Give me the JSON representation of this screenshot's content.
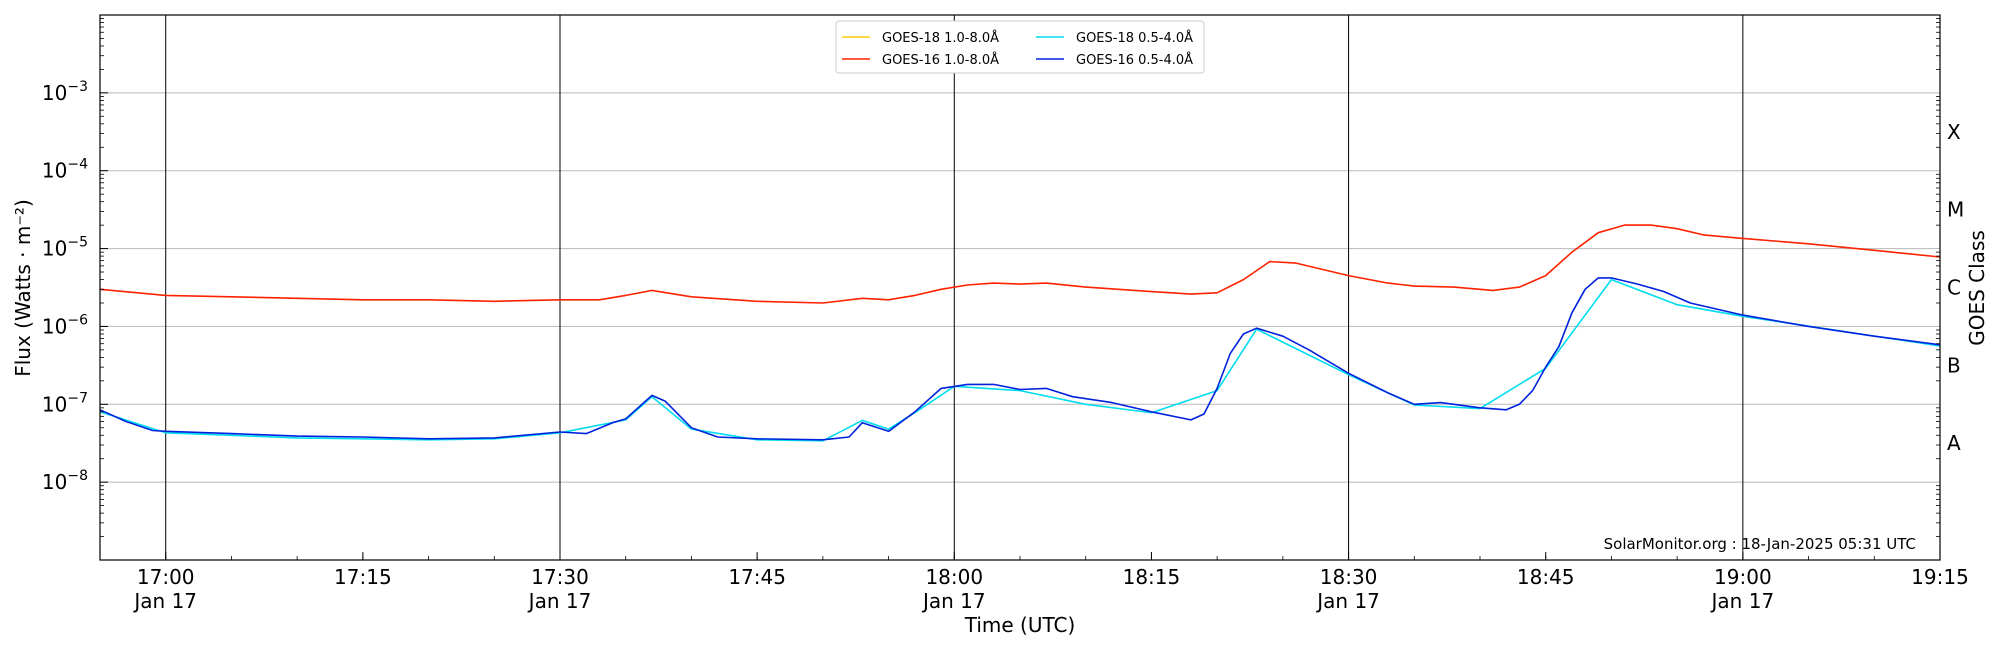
{
  "chart_data": {
    "type": "line",
    "title": "",
    "xlabel": "Time (UTC)",
    "ylabel": "Flux (Watts · m⁻²)",
    "ylabel_right": "GOES Class",
    "y_scale": "log",
    "ylim": [
      1e-09,
      0.01
    ],
    "xlim": [
      "2025-01-17 16:55",
      "2025-01-17 19:15"
    ],
    "grid": "horizontal at decades, vertical at half hours",
    "legend_position": "top-center",
    "credit": "SolarMonitor.org : 18-Jan-2025 05:31 UTC",
    "y_ticks": [
      {
        "value": 1e-08,
        "base": "10",
        "exp": "−8"
      },
      {
        "value": 1e-07,
        "base": "10",
        "exp": "−7"
      },
      {
        "value": 1e-06,
        "base": "10",
        "exp": "−6"
      },
      {
        "value": 1e-05,
        "base": "10",
        "exp": "−5"
      },
      {
        "value": 0.0001,
        "base": "10",
        "exp": "−4"
      },
      {
        "value": 0.001,
        "base": "10",
        "exp": "−3"
      }
    ],
    "x_ticks": [
      {
        "time": "17:00",
        "label": "17:00",
        "sublabel": "Jan 17"
      },
      {
        "time": "17:15",
        "label": "17:15",
        "sublabel": ""
      },
      {
        "time": "17:30",
        "label": "17:30",
        "sublabel": "Jan 17"
      },
      {
        "time": "17:45",
        "label": "17:45",
        "sublabel": ""
      },
      {
        "time": "18:00",
        "label": "18:00",
        "sublabel": "Jan 17"
      },
      {
        "time": "18:15",
        "label": "18:15",
        "sublabel": ""
      },
      {
        "time": "18:30",
        "label": "18:30",
        "sublabel": "Jan 17"
      },
      {
        "time": "18:45",
        "label": "18:45",
        "sublabel": ""
      },
      {
        "time": "19:00",
        "label": "19:00",
        "sublabel": "Jan 17"
      },
      {
        "time": "19:15",
        "label": "19:15",
        "sublabel": ""
      }
    ],
    "goes_classes": [
      {
        "label": "X",
        "value": 0.000316
      },
      {
        "label": "M",
        "value": 3.16e-05
      },
      {
        "label": "C",
        "value": 3.16e-06
      },
      {
        "label": "B",
        "value": 3.16e-07
      },
      {
        "label": "A",
        "value": 3.16e-08
      }
    ],
    "series": [
      {
        "name": "GOES-16 1.0-8.0Å",
        "color": "#ff2200",
        "x": [
          "16:55",
          "17:00",
          "17:05",
          "17:10",
          "17:15",
          "17:20",
          "17:25",
          "17:30",
          "17:33",
          "17:35",
          "17:37",
          "17:40",
          "17:45",
          "17:50",
          "17:53",
          "17:55",
          "17:57",
          "17:59",
          "18:01",
          "18:03",
          "18:05",
          "18:07",
          "18:10",
          "18:15",
          "18:18",
          "18:20",
          "18:22",
          "18:24",
          "18:26",
          "18:30",
          "18:33",
          "18:35",
          "18:38",
          "18:41",
          "18:43",
          "18:45",
          "18:47",
          "18:49",
          "18:51",
          "18:53",
          "18:55",
          "18:57",
          "19:00",
          "19:05",
          "19:10",
          "19:15"
        ],
        "values": [
          3e-06,
          2.5e-06,
          2.4e-06,
          2.3e-06,
          2.2e-06,
          2.2e-06,
          2.1e-06,
          2.2e-06,
          2.2e-06,
          2.5e-06,
          2.9e-06,
          2.4e-06,
          2.1e-06,
          2e-06,
          2.3e-06,
          2.2e-06,
          2.5e-06,
          3e-06,
          3.4e-06,
          3.6e-06,
          3.5e-06,
          3.6e-06,
          3.2e-06,
          2.8e-06,
          2.6e-06,
          2.7e-06,
          4e-06,
          6.8e-06,
          6.5e-06,
          4.5e-06,
          3.6e-06,
          3.3e-06,
          3.2e-06,
          2.9e-06,
          3.2e-06,
          4.5e-06,
          9e-06,
          1.6e-05,
          2e-05,
          2e-05,
          1.8e-05,
          1.5e-05,
          1.35e-05,
          1.15e-05,
          9.5e-06,
          7.8e-06
        ]
      },
      {
        "name": "GOES-16 0.5-4.0Å",
        "color": "#0022dd",
        "x": [
          "16:55",
          "16:57",
          "16:59",
          "17:00",
          "17:05",
          "17:10",
          "17:15",
          "17:20",
          "17:25",
          "17:30",
          "17:32",
          "17:34",
          "17:35",
          "17:37",
          "17:38",
          "17:40",
          "17:42",
          "17:45",
          "17:50",
          "17:52",
          "17:53",
          "17:55",
          "17:57",
          "17:59",
          "18:01",
          "18:03",
          "18:05",
          "18:07",
          "18:09",
          "18:12",
          "18:15",
          "18:18",
          "18:19",
          "18:20",
          "18:21",
          "18:22",
          "18:23",
          "18:25",
          "18:27",
          "18:30",
          "18:33",
          "18:35",
          "18:37",
          "18:40",
          "18:42",
          "18:43",
          "18:44",
          "18:45",
          "18:46",
          "18:47",
          "18:48",
          "18:49",
          "18:50",
          "18:52",
          "18:54",
          "18:56",
          "19:00",
          "19:05",
          "19:10",
          "19:15"
        ],
        "values": [
          8.5e-08,
          6e-08,
          4.6e-08,
          4.5e-08,
          4.2e-08,
          3.9e-08,
          3.8e-08,
          3.6e-08,
          3.7e-08,
          4.4e-08,
          4.2e-08,
          5.8e-08,
          6.5e-08,
          1.3e-07,
          1.1e-07,
          5e-08,
          3.8e-08,
          3.6e-08,
          3.5e-08,
          3.8e-08,
          5.8e-08,
          4.5e-08,
          8e-08,
          1.6e-07,
          1.8e-07,
          1.8e-07,
          1.55e-07,
          1.6e-07,
          1.25e-07,
          1.05e-07,
          8e-08,
          6.3e-08,
          7.5e-08,
          1.6e-07,
          4.5e-07,
          8e-07,
          9.5e-07,
          7.5e-07,
          5e-07,
          2.5e-07,
          1.4e-07,
          1e-07,
          1.05e-07,
          9e-08,
          8.5e-08,
          1e-07,
          1.5e-07,
          3e-07,
          5.5e-07,
          1.5e-06,
          3e-06,
          4.2e-06,
          4.2e-06,
          3.5e-06,
          2.8e-06,
          2e-06,
          1.4e-06,
          1e-06,
          7.5e-07,
          5.8e-07
        ]
      },
      {
        "name": "GOES-18 1.0-8.0Å",
        "color": "#ffcc00",
        "x": [],
        "values": []
      },
      {
        "name": "GOES-18 0.5-4.0Å",
        "color": "#00ddee",
        "x": [
          "16:55",
          "17:00",
          "17:05",
          "17:10",
          "17:15",
          "17:20",
          "17:25",
          "17:30",
          "17:35",
          "17:37",
          "17:40",
          "17:45",
          "17:50",
          "17:53",
          "17:55",
          "17:57",
          "18:00",
          "18:05",
          "18:10",
          "18:15",
          "18:20",
          "18:23",
          "18:30",
          "18:35",
          "18:40",
          "18:45",
          "18:50",
          "18:55",
          "19:00",
          "19:15"
        ],
        "values": [
          8e-08,
          4.3e-08,
          4e-08,
          3.7e-08,
          3.6e-08,
          3.5e-08,
          3.6e-08,
          4.3e-08,
          6.3e-08,
          1.25e-07,
          4.8e-08,
          3.5e-08,
          3.4e-08,
          6.2e-08,
          4.8e-08,
          7.8e-08,
          1.7e-07,
          1.5e-07,
          1e-07,
          7.8e-08,
          1.5e-07,
          9.2e-07,
          2.4e-07,
          9.8e-08,
          8.8e-08,
          2.9e-07,
          4e-06,
          1.9e-06,
          1.35e-06,
          5.6e-07
        ]
      }
    ]
  }
}
